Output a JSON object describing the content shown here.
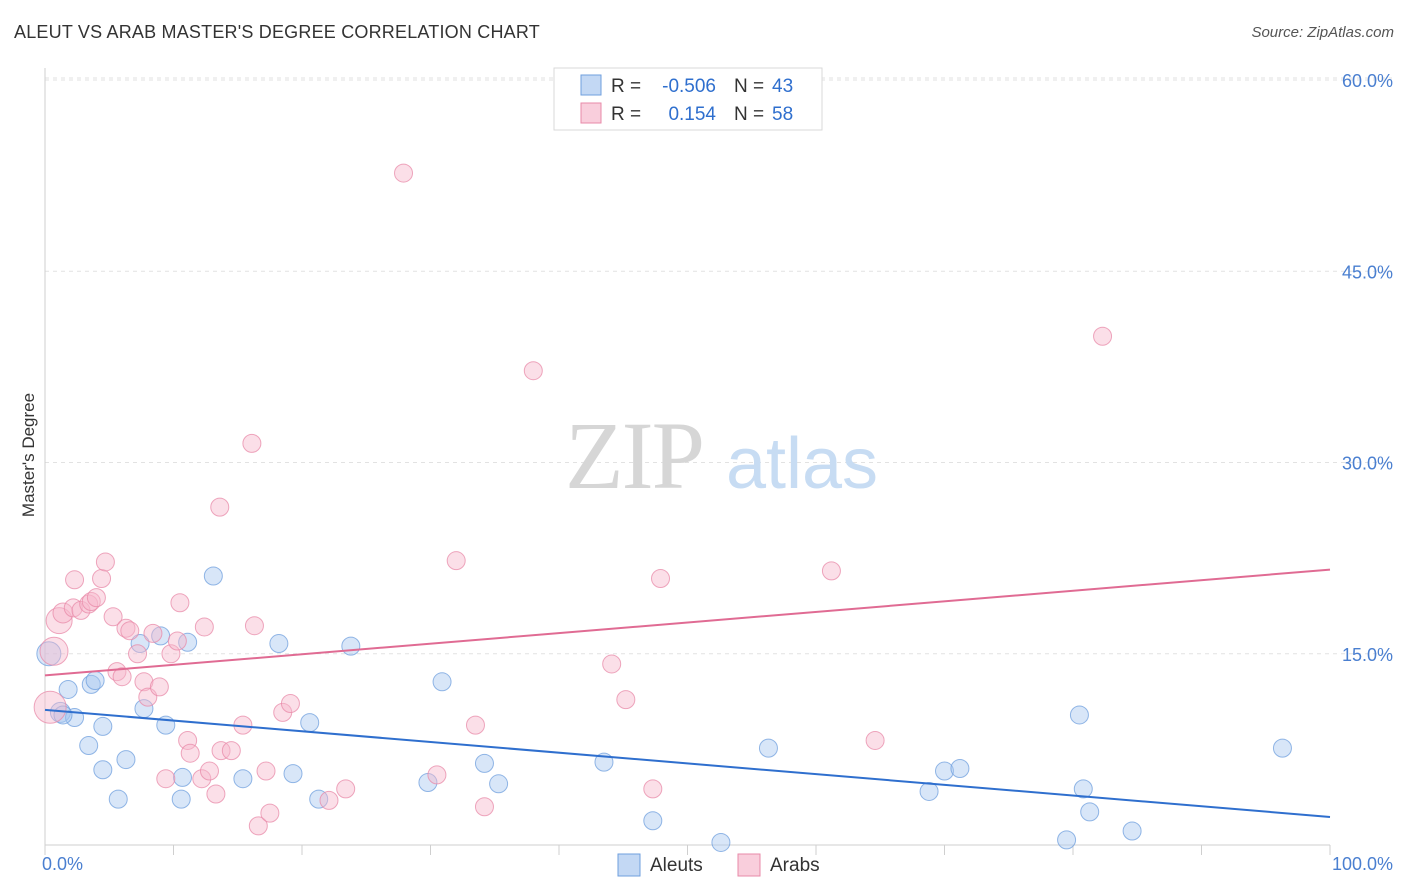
{
  "chart_data": {
    "type": "scatter",
    "title": "ALEUT VS ARAB MASTER'S DEGREE CORRELATION CHART",
    "source": "Source: ZipAtlas.com",
    "xlabel": "",
    "ylabel": "Master's Degree",
    "xlim": [
      0,
      100
    ],
    "ylim": [
      0,
      60
    ],
    "x_ticks": [
      {
        "value": 0,
        "label": "0.0%"
      },
      {
        "value": 100,
        "label": "100.0%"
      }
    ],
    "y_ticks": [
      {
        "value": 15,
        "label": "15.0%"
      },
      {
        "value": 30,
        "label": "30.0%"
      },
      {
        "value": 45,
        "label": "45.0%"
      },
      {
        "value": 60,
        "label": "60.0%"
      }
    ],
    "grid": "dashed horizontal",
    "watermark": {
      "part1": "ZIP",
      "part2": "atlas"
    },
    "legend_top": [
      {
        "r_label": "R =",
        "r_value": "-0.506",
        "n_label": "N =",
        "n_value": "43",
        "color": "#a9c8f0",
        "stroke": "#6f9fde"
      },
      {
        "r_label": "R =",
        "r_value": "0.154",
        "n_label": "N =",
        "n_value": "58",
        "color": "#f6b9cd",
        "stroke": "#e88aa8"
      }
    ],
    "series": [
      {
        "name": "Aleuts",
        "color": "#a9c8f0",
        "stroke": "#6f9fde",
        "trend_color": "#2f6fce",
        "trend": {
          "x0": 0,
          "y0": 10.6,
          "x1": 100,
          "y1": 2.2
        },
        "points": [
          [
            0.3,
            15.0,
            12
          ],
          [
            1.2,
            10.4,
            10
          ],
          [
            1.8,
            12.2,
            9
          ],
          [
            2.3,
            10.0,
            9
          ],
          [
            3.6,
            12.6,
            9
          ],
          [
            3.4,
            7.8,
            9
          ],
          [
            3.9,
            12.9,
            9
          ],
          [
            4.5,
            9.3,
            9
          ],
          [
            4.5,
            5.9,
            9
          ],
          [
            6.3,
            6.7,
            9
          ],
          [
            5.7,
            3.6,
            9
          ],
          [
            7.4,
            15.8,
            9
          ],
          [
            7.7,
            10.7,
            9
          ],
          [
            9.0,
            16.4,
            9
          ],
          [
            9.4,
            9.4,
            9
          ],
          [
            10.6,
            3.6,
            9
          ],
          [
            10.7,
            5.3,
            9
          ],
          [
            11.1,
            15.9,
            9
          ],
          [
            13.1,
            21.1,
            9
          ],
          [
            15.4,
            5.2,
            9
          ],
          [
            18.2,
            15.8,
            9
          ],
          [
            19.3,
            5.6,
            9
          ],
          [
            20.6,
            9.6,
            9
          ],
          [
            21.3,
            3.6,
            9
          ],
          [
            23.8,
            15.6,
            9
          ],
          [
            29.8,
            4.9,
            9
          ],
          [
            30.9,
            12.8,
            9
          ],
          [
            34.2,
            6.4,
            9
          ],
          [
            35.3,
            4.8,
            9
          ],
          [
            43.5,
            6.5,
            9
          ],
          [
            47.3,
            1.9,
            9
          ],
          [
            52.6,
            0.2,
            9
          ],
          [
            56.3,
            7.6,
            9
          ],
          [
            68.8,
            4.2,
            9
          ],
          [
            70.0,
            5.8,
            9
          ],
          [
            71.2,
            6.0,
            9
          ],
          [
            79.5,
            0.4,
            9
          ],
          [
            80.5,
            10.2,
            9
          ],
          [
            80.8,
            4.4,
            9
          ],
          [
            81.3,
            2.6,
            9
          ],
          [
            84.6,
            1.1,
            9
          ],
          [
            96.3,
            7.6,
            9
          ],
          [
            1.4,
            10.2,
            9
          ]
        ]
      },
      {
        "name": "Arabs",
        "color": "#f6b9cd",
        "stroke": "#e88aa8",
        "trend_color": "#e06b93",
        "trend": {
          "x0": 0,
          "y0": 13.3,
          "x1": 100,
          "y1": 21.6
        },
        "points": [
          [
            0.4,
            10.8,
            16
          ],
          [
            0.7,
            15.2,
            14
          ],
          [
            1.1,
            17.6,
            13
          ],
          [
            1.4,
            18.2,
            10
          ],
          [
            2.2,
            18.6,
            9
          ],
          [
            2.3,
            20.8,
            9
          ],
          [
            2.8,
            18.4,
            9
          ],
          [
            3.4,
            18.9,
            9
          ],
          [
            3.6,
            19.1,
            9
          ],
          [
            4.0,
            19.4,
            9
          ],
          [
            4.4,
            20.9,
            9
          ],
          [
            4.7,
            22.2,
            9
          ],
          [
            5.3,
            17.9,
            9
          ],
          [
            5.6,
            13.6,
            9
          ],
          [
            6.0,
            13.2,
            9
          ],
          [
            6.3,
            17.0,
            9
          ],
          [
            6.6,
            16.8,
            9
          ],
          [
            7.2,
            15.0,
            9
          ],
          [
            7.7,
            12.8,
            9
          ],
          [
            8.0,
            11.6,
            9
          ],
          [
            8.4,
            16.6,
            9
          ],
          [
            8.9,
            12.4,
            9
          ],
          [
            9.4,
            5.2,
            9
          ],
          [
            9.8,
            15.0,
            9
          ],
          [
            10.3,
            16.0,
            9
          ],
          [
            10.5,
            19.0,
            9
          ],
          [
            11.1,
            8.2,
            9
          ],
          [
            11.3,
            7.2,
            9
          ],
          [
            12.2,
            5.2,
            9
          ],
          [
            12.4,
            17.1,
            9
          ],
          [
            12.8,
            5.8,
            9
          ],
          [
            13.3,
            4.0,
            9
          ],
          [
            13.6,
            26.5,
            9
          ],
          [
            13.7,
            7.4,
            9
          ],
          [
            14.5,
            7.4,
            9
          ],
          [
            15.4,
            9.4,
            9
          ],
          [
            16.1,
            31.5,
            9
          ],
          [
            16.3,
            17.2,
            9
          ],
          [
            16.6,
            1.5,
            9
          ],
          [
            17.2,
            5.8,
            9
          ],
          [
            17.5,
            2.5,
            9
          ],
          [
            18.5,
            10.4,
            9
          ],
          [
            19.1,
            11.1,
            9
          ],
          [
            22.1,
            3.5,
            9
          ],
          [
            23.4,
            4.4,
            9
          ],
          [
            27.9,
            52.7,
            9
          ],
          [
            30.5,
            5.5,
            9
          ],
          [
            32.0,
            22.3,
            9
          ],
          [
            33.5,
            9.4,
            9
          ],
          [
            34.2,
            3.0,
            9
          ],
          [
            38.0,
            37.2,
            9
          ],
          [
            44.1,
            14.2,
            9
          ],
          [
            45.2,
            11.4,
            9
          ],
          [
            47.3,
            4.4,
            9
          ],
          [
            47.9,
            20.9,
            9
          ],
          [
            61.2,
            21.5,
            9
          ],
          [
            64.6,
            8.2,
            9
          ],
          [
            82.3,
            39.9,
            9
          ]
        ]
      }
    ]
  }
}
